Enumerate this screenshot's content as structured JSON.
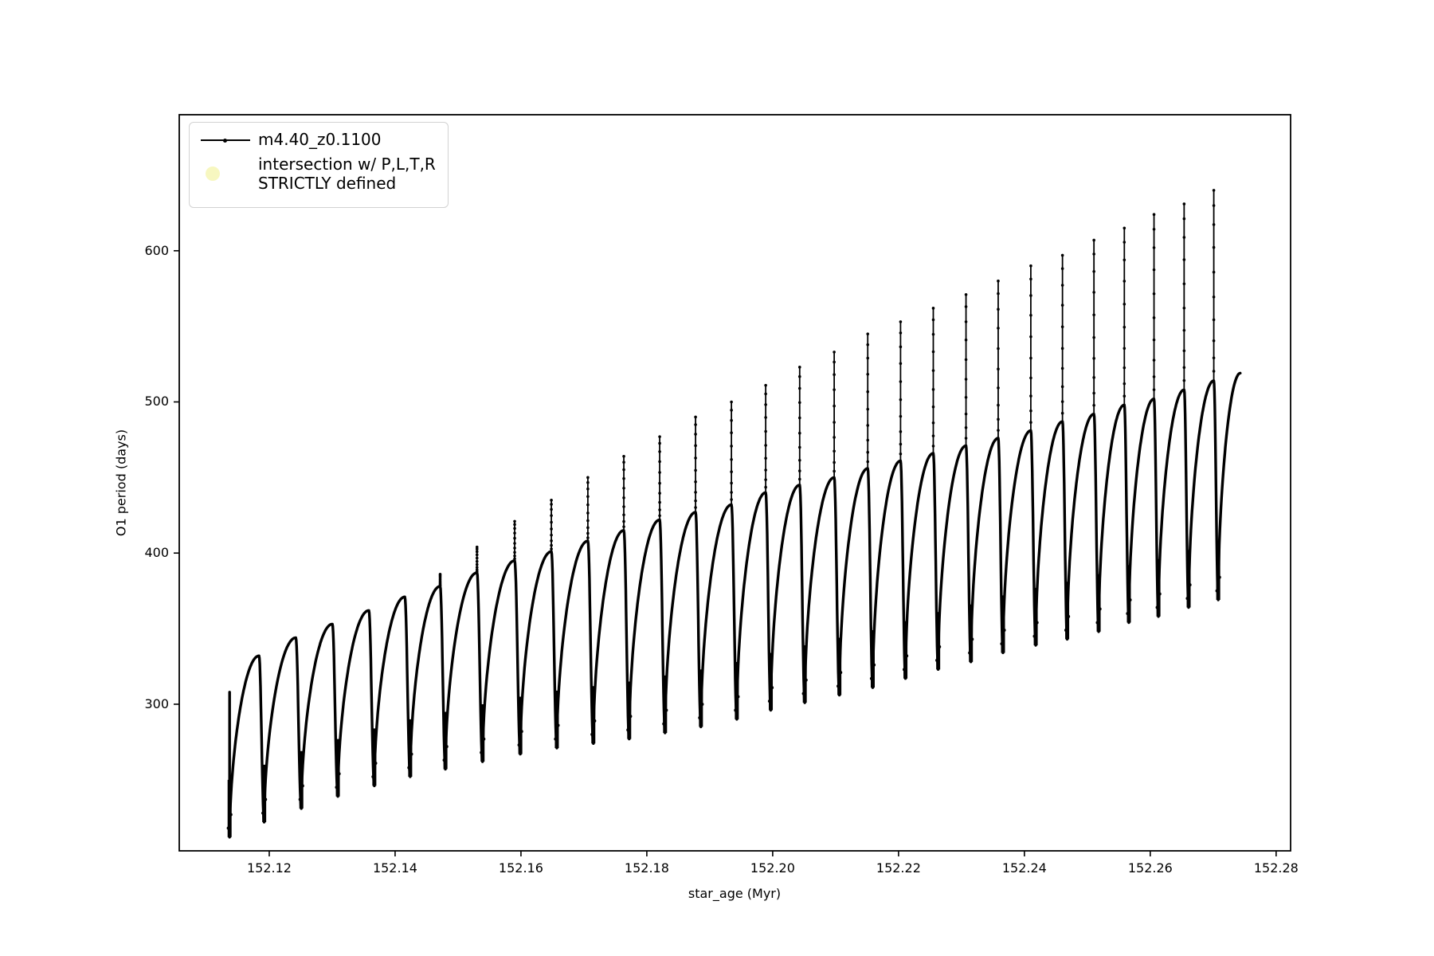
{
  "figure": {
    "background": "#ffffff",
    "frame_color": "#000000"
  },
  "chart_data": {
    "type": "line",
    "title": "",
    "xlabel": "star_age (Myr)",
    "ylabel": "O1 period (days)",
    "xlim": [
      152.1057,
      152.2823
    ],
    "ylim": [
      203,
      690
    ],
    "xticks": [
      152.12,
      152.14,
      152.16,
      152.18,
      152.2,
      152.22,
      152.24,
      152.26,
      152.28
    ],
    "yticks": [
      300,
      400,
      500,
      600
    ],
    "grid": false,
    "legend_position": "upper left",
    "series": [
      {
        "name": "m4.40_z0.1100",
        "color": "#000000",
        "marker": ".",
        "description": "sawtooth oscillation: steep rise to rounded hump then sharp dip; thin upward spikes at each dip, growing taller toward the right",
        "start": {
          "x": 152.1137,
          "y": 308
        },
        "end": {
          "x": 152.2743,
          "y": 519
        },
        "dips": [
          {
            "x": 152.1137,
            "min": 212
          },
          {
            "x": 152.1192,
            "min": 222
          },
          {
            "x": 152.1251,
            "min": 231
          },
          {
            "x": 152.1309,
            "min": 239
          },
          {
            "x": 152.1367,
            "min": 246
          },
          {
            "x": 152.1424,
            "min": 252
          },
          {
            "x": 152.148,
            "min": 257
          },
          {
            "x": 152.1539,
            "min": 262
          },
          {
            "x": 152.1599,
            "min": 267
          },
          {
            "x": 152.1657,
            "min": 271
          },
          {
            "x": 152.1715,
            "min": 274
          },
          {
            "x": 152.1772,
            "min": 277
          },
          {
            "x": 152.1829,
            "min": 281
          },
          {
            "x": 152.1886,
            "min": 285
          },
          {
            "x": 152.1943,
            "min": 290
          },
          {
            "x": 152.1997,
            "min": 296
          },
          {
            "x": 152.2051,
            "min": 301
          },
          {
            "x": 152.2106,
            "min": 306
          },
          {
            "x": 152.2159,
            "min": 311
          },
          {
            "x": 152.2211,
            "min": 317
          },
          {
            "x": 152.2263,
            "min": 323
          },
          {
            "x": 152.2315,
            "min": 328
          },
          {
            "x": 152.2366,
            "min": 334
          },
          {
            "x": 152.2418,
            "min": 339
          },
          {
            "x": 152.2468,
            "min": 343
          },
          {
            "x": 152.2518,
            "min": 348
          },
          {
            "x": 152.2566,
            "min": 354
          },
          {
            "x": 152.2613,
            "min": 358
          },
          {
            "x": 152.2661,
            "min": 364
          },
          {
            "x": 152.2708,
            "min": 369
          }
        ],
        "humps": [
          332,
          344,
          353,
          362,
          371,
          378,
          387,
          395,
          401,
          408,
          415,
          422,
          427,
          432,
          440,
          445,
          450,
          456,
          461,
          466,
          471,
          476,
          481,
          487,
          492,
          498,
          502,
          508,
          514
        ],
        "spikes": [
          null,
          null,
          null,
          null,
          null,
          386,
          404,
          421,
          435,
          450,
          464,
          477,
          490,
          500,
          511,
          523,
          533,
          545,
          553,
          562,
          571,
          580,
          590,
          597,
          607,
          615,
          624,
          631,
          640
        ]
      },
      {
        "name": "intersection w/ P,L,T,R STRICTLY defined",
        "color": "#f7f7c0",
        "marker": "o",
        "points": []
      }
    ]
  },
  "legend": {
    "items": [
      {
        "label": "m4.40_z0.1100",
        "marker": "line-with-dot",
        "color": "#000000"
      },
      {
        "label": "intersection w/ P,L,T,R\nSTRICTLY defined",
        "marker": "circle",
        "color": "#f7f7c0"
      }
    ]
  }
}
